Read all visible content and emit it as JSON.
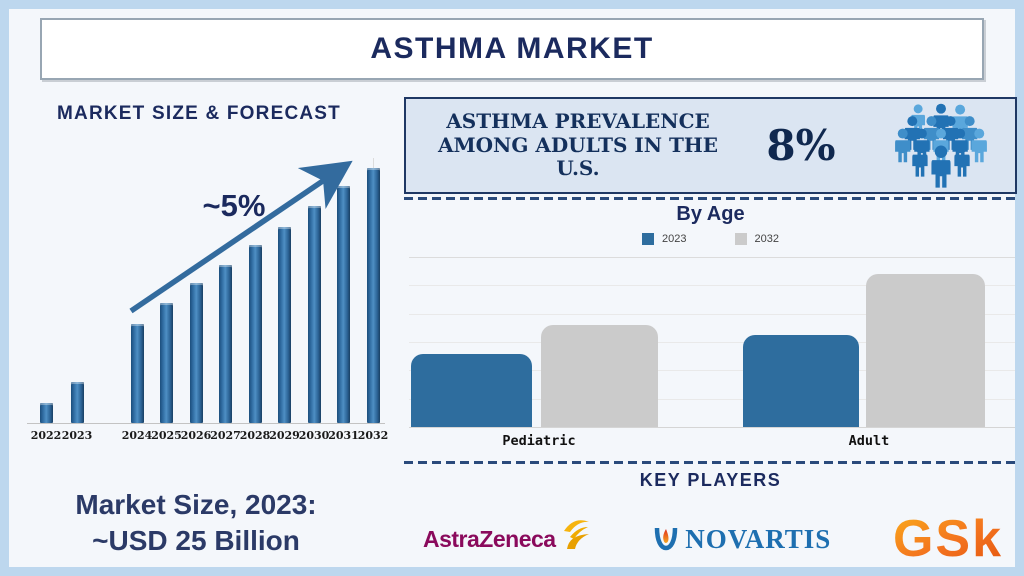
{
  "page": {
    "title": "ASTHMA MARKET"
  },
  "left_panel": {
    "chart_title": "MARKET SIZE & FORECAST",
    "growth_label": "~5%",
    "note_line1": "Market Size, 2023:",
    "note_line2": "~USD 25 Billion"
  },
  "prevalence": {
    "heading": "ASTHMA PREVALENCE AMONG ADULTS IN THE U.S.",
    "value": "8%",
    "icon": "crowd-people-icon"
  },
  "by_age": {
    "title": "By Age",
    "legend": [
      "2023",
      "2032"
    ],
    "categories": [
      "Pediatric",
      "Adult"
    ]
  },
  "key_players": {
    "heading": "KEY PLAYERS",
    "companies": [
      "AstraZeneca",
      "NOVARTIS",
      "GSk"
    ]
  },
  "colors": {
    "navy_text": "#1b2a5e",
    "forecast_bar_blue": "#2e6da4",
    "arrow_blue": "#336b9e",
    "byage_2023_blue": "#2e6d9e",
    "byage_2032_gray": "#cbcbcb",
    "prevalence_box_bg": "#dbe5f2",
    "page_border_blue": "#bdd7ee",
    "astrazeneca_magenta": "#8a0a5c",
    "astrazeneca_gold": "#f0ab00",
    "novartis_blue": "#1e6fb0",
    "gsk_orange": "#f36f21"
  },
  "chart_data": [
    {
      "id": "market-size-forecast",
      "type": "bar",
      "title": "MARKET SIZE & FORECAST",
      "categories": [
        "2022",
        "2023",
        "2024",
        "2025",
        "2026",
        "2027",
        "2028",
        "2029",
        "2030",
        "2031",
        "2032"
      ],
      "values": [
        8,
        16,
        39,
        47,
        55,
        62,
        70,
        77,
        85,
        93,
        100
      ],
      "value_scale": "relative bar height (no y-axis shown), 2032 = 100",
      "annotation": "~5%",
      "xlabel": "",
      "ylabel": "",
      "grid": false,
      "context": "Market Size, 2023: ~USD 25 Billion; growth arrow labeled ~5%"
    },
    {
      "id": "asthma-by-age",
      "type": "bar",
      "title": "By Age",
      "categories": [
        "Pediatric",
        "Adult"
      ],
      "series": [
        {
          "name": "2023",
          "values": [
            48,
            60
          ]
        },
        {
          "name": "2032",
          "values": [
            67,
            100
          ]
        }
      ],
      "value_scale": "relative bar height (no y-axis shown), Adult 2032 = 100",
      "legend_position": "top",
      "grid": true
    }
  ]
}
